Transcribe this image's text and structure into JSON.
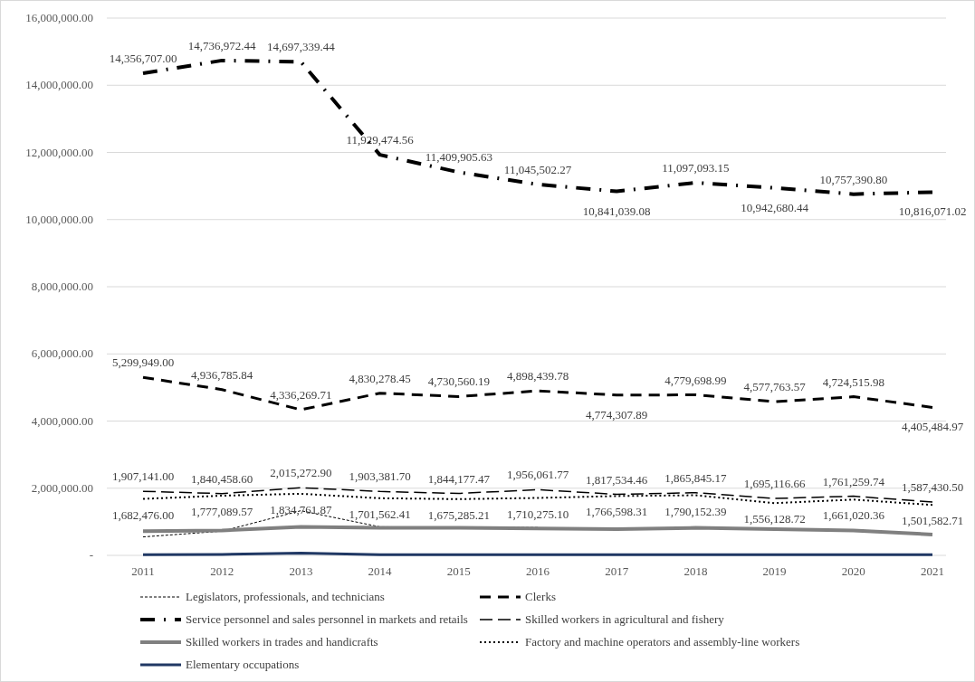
{
  "chart_data": {
    "type": "line",
    "categories": [
      "2011",
      "2012",
      "2013",
      "2014",
      "2015",
      "2016",
      "2017",
      "2018",
      "2019",
      "2020",
      "2021"
    ],
    "ylim": [
      0,
      16000000
    ],
    "yticks": [
      {
        "value": 0,
        "label": "-"
      },
      {
        "value": 2000000,
        "label": "2,000,000.00"
      },
      {
        "value": 4000000,
        "label": "4,000,000.00"
      },
      {
        "value": 6000000,
        "label": "6,000,000.00"
      },
      {
        "value": 8000000,
        "label": "8,000,000.00"
      },
      {
        "value": 10000000,
        "label": "10,000,000.00"
      },
      {
        "value": 12000000,
        "label": "12,000,000.00"
      },
      {
        "value": 14000000,
        "label": "14,000,000.00"
      },
      {
        "value": 16000000,
        "label": "16,000,000.00"
      }
    ],
    "grid": "y",
    "legend": "bottom",
    "marker": "none",
    "series": [
      {
        "name": "Legislators, professionals, and technicians",
        "color": "#000000",
        "line_style": "dotted",
        "values": [
          550000,
          720000,
          1330000,
          850000,
          840000,
          830000,
          null,
          null,
          null,
          null,
          null
        ]
      },
      {
        "name": "Clerks",
        "color": "#000000",
        "line_style": "dashed",
        "values": [
          5299949,
          4936785.84,
          4336269.71,
          4830278.45,
          4730560.19,
          4898439.78,
          4774307.89,
          4779698.99,
          4577763.57,
          4724515.98,
          4405484.97
        ],
        "value_labels": [
          "5,299,949.00",
          "4,936,785.84",
          "4,336,269.71",
          "4,830,278.45",
          "4,730,560.19",
          "4,898,439.78",
          "4,774,307.89",
          "4,779,698.99",
          "4,577,763.57",
          "4,724,515.98",
          "4,405,484.97"
        ]
      },
      {
        "name": "Service personnel and sales personnel in markets and retails",
        "color": "#000000",
        "line_style": "dashed",
        "values": [
          14356707,
          14736972.44,
          14697339.44,
          11929474.56,
          11409905.63,
          11045502.27,
          10841039.08,
          11097093.15,
          10942680.44,
          10757390.8,
          10816071.02
        ],
        "value_labels": [
          "14,356,707.00",
          "14,736,972.44",
          "14,697,339.44",
          "11,929,474.56",
          "11,409,905.63",
          "11,045,502.27",
          "10,841,039.08",
          "11,097,093.15",
          "10,942,680.44",
          "10,757,390.80",
          "10,816,071.02"
        ]
      },
      {
        "name": "Skilled workers in agricultural and fishery",
        "color": "#000000",
        "line_style": "dashed",
        "values": [
          1907141,
          1840458.6,
          2015272.9,
          1903381.7,
          1844177.47,
          1956061.77,
          1817534.46,
          1865845.17,
          1695116.66,
          1761259.74,
          1587430.5
        ],
        "value_labels": [
          "1,907,141.00",
          "1,840,458.60",
          "2,015,272.90",
          "1,903,381.70",
          "1,844,177.47",
          "1,956,061.77",
          "1,817,534.46",
          "1,865,845.17",
          "1,695,116.66",
          "1,761,259.74",
          "1,587,430.50"
        ]
      },
      {
        "name": "Skilled workers in trades and handicrafts",
        "color": "#808080",
        "line_style": "solid",
        "values": [
          720000,
          740000,
          850000,
          820000,
          820000,
          800000,
          780000,
          820000,
          780000,
          740000,
          620000
        ]
      },
      {
        "name": "Factory and machine operators and assembly-line workers",
        "color": "#000000",
        "line_style": "dotted",
        "values": [
          1682476,
          1777089.57,
          1834761.87,
          1701562.41,
          1675285.21,
          1710275.1,
          1766598.31,
          1790152.39,
          1556128.72,
          1661020.36,
          1501582.71
        ],
        "value_labels": [
          "1,682,476.00",
          "1,777,089.57",
          "1,834,761.87",
          "1,701,562.41",
          "1,675,285.21",
          "1,710,275.10",
          "1,766,598.31",
          "1,790,152.39",
          "1,556,128.72",
          "1,661,020.36",
          "1,501,582.71"
        ]
      },
      {
        "name": "Elementary occupations",
        "color": "#203864",
        "line_style": "solid",
        "values": [
          20000,
          30000,
          70000,
          20000,
          20000,
          20000,
          20000,
          20000,
          20000,
          20000,
          20000
        ]
      }
    ]
  }
}
